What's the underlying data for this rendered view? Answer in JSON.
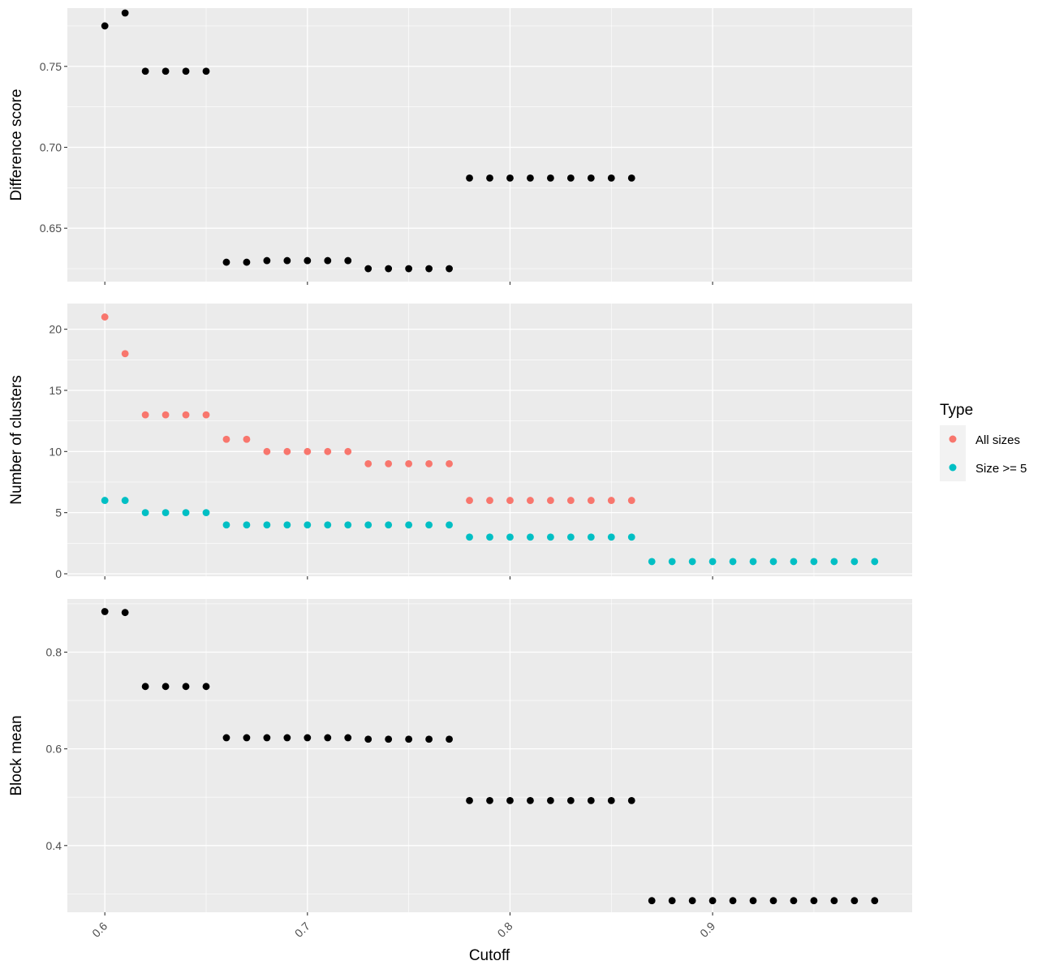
{
  "chart_data": {
    "type": "scatter",
    "xlabel": "Cutoff",
    "x_tick_labels": [
      "0.6",
      "0.7",
      "0.8",
      "0.9"
    ],
    "x_ticks": [
      0.6,
      0.7,
      0.8,
      0.9
    ],
    "xlim": [
      0.5815,
      0.9985
    ],
    "panel_background": "#ebebeb",
    "grid": true,
    "legend": {
      "title": "Type",
      "placement": "right",
      "entries": [
        {
          "label": "All sizes",
          "color": "#f8766d"
        },
        {
          "label": "Size >= 5",
          "color": "#00bfc4"
        }
      ]
    },
    "panels": [
      {
        "id": "difference-score",
        "ylabel": "Difference score",
        "ylim": [
          0.617,
          0.786
        ],
        "y_ticks": [
          0.65,
          0.7,
          0.75
        ],
        "y_tick_labels": [
          "0.65",
          "0.70",
          "0.75"
        ],
        "series": [
          {
            "color": "#000000",
            "x": [
              0.6,
              0.61,
              0.62,
              0.63,
              0.64,
              0.65,
              0.66,
              0.67,
              0.68,
              0.69,
              0.7,
              0.71,
              0.72,
              0.73,
              0.74,
              0.75,
              0.76,
              0.77,
              0.78,
              0.79,
              0.8,
              0.81,
              0.82,
              0.83,
              0.84,
              0.85,
              0.86
            ],
            "y": [
              0.775,
              0.783,
              0.747,
              0.747,
              0.747,
              0.747,
              0.629,
              0.629,
              0.63,
              0.63,
              0.63,
              0.63,
              0.63,
              0.625,
              0.625,
              0.625,
              0.625,
              0.625,
              0.681,
              0.681,
              0.681,
              0.681,
              0.681,
              0.681,
              0.681,
              0.681,
              0.681
            ]
          }
        ]
      },
      {
        "id": "number-of-clusters",
        "ylabel": "Number of clusters",
        "ylim": [
          -0.2,
          22.1
        ],
        "y_ticks": [
          0,
          5,
          10,
          15,
          20
        ],
        "y_tick_labels": [
          "0",
          "5",
          "10",
          "15",
          "20"
        ],
        "series": [
          {
            "name": "All sizes",
            "color": "#f8766d",
            "x": [
              0.6,
              0.61,
              0.62,
              0.63,
              0.64,
              0.65,
              0.66,
              0.67,
              0.68,
              0.69,
              0.7,
              0.71,
              0.72,
              0.73,
              0.74,
              0.75,
              0.76,
              0.77,
              0.78,
              0.79,
              0.8,
              0.81,
              0.82,
              0.83,
              0.84,
              0.85,
              0.86
            ],
            "y": [
              21,
              18,
              13,
              13,
              13,
              13,
              11,
              11,
              10,
              10,
              10,
              10,
              10,
              9,
              9,
              9,
              9,
              9,
              6,
              6,
              6,
              6,
              6,
              6,
              6,
              6,
              6
            ]
          },
          {
            "name": "Size >= 5",
            "color": "#00bfc4",
            "x": [
              0.6,
              0.61,
              0.62,
              0.63,
              0.64,
              0.65,
              0.66,
              0.67,
              0.68,
              0.69,
              0.7,
              0.71,
              0.72,
              0.73,
              0.74,
              0.75,
              0.76,
              0.77,
              0.78,
              0.79,
              0.8,
              0.81,
              0.82,
              0.83,
              0.84,
              0.85,
              0.86,
              0.87,
              0.88,
              0.89,
              0.9,
              0.91,
              0.92,
              0.93,
              0.94,
              0.95,
              0.96,
              0.97,
              0.98
            ],
            "y": [
              6,
              6,
              5,
              5,
              5,
              5,
              4,
              4,
              4,
              4,
              4,
              4,
              4,
              4,
              4,
              4,
              4,
              4,
              3,
              3,
              3,
              3,
              3,
              3,
              3,
              3,
              3,
              1,
              1,
              1,
              1,
              1,
              1,
              1,
              1,
              1,
              1,
              1,
              1
            ]
          }
        ]
      },
      {
        "id": "block-mean",
        "ylabel": "Block mean",
        "ylim": [
          0.262,
          0.91
        ],
        "y_ticks": [
          0.4,
          0.6,
          0.8
        ],
        "y_tick_labels": [
          "0.4",
          "0.6",
          "0.8"
        ],
        "series": [
          {
            "color": "#000000",
            "x": [
              0.6,
              0.61,
              0.62,
              0.63,
              0.64,
              0.65,
              0.66,
              0.67,
              0.68,
              0.69,
              0.7,
              0.71,
              0.72,
              0.73,
              0.74,
              0.75,
              0.76,
              0.77,
              0.78,
              0.79,
              0.8,
              0.81,
              0.82,
              0.83,
              0.84,
              0.85,
              0.86,
              0.87,
              0.88,
              0.89,
              0.9,
              0.91,
              0.92,
              0.93,
              0.94,
              0.95,
              0.96,
              0.97,
              0.98
            ],
            "y": [
              0.884,
              0.882,
              0.729,
              0.729,
              0.729,
              0.729,
              0.623,
              0.623,
              0.623,
              0.623,
              0.623,
              0.623,
              0.623,
              0.62,
              0.62,
              0.62,
              0.62,
              0.62,
              0.493,
              0.493,
              0.493,
              0.493,
              0.493,
              0.493,
              0.493,
              0.493,
              0.493,
              0.286,
              0.286,
              0.286,
              0.286,
              0.286,
              0.286,
              0.286,
              0.286,
              0.286,
              0.286,
              0.286,
              0.286
            ]
          }
        ]
      }
    ]
  }
}
